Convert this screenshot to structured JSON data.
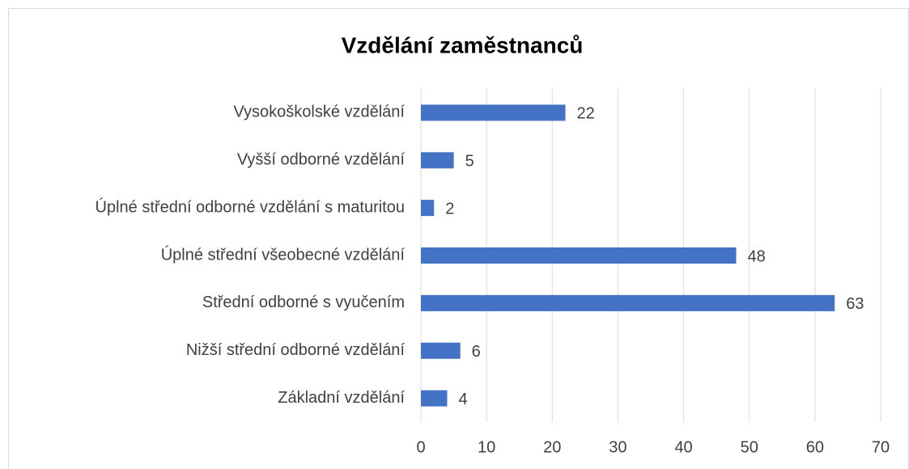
{
  "chart_data": {
    "type": "bar",
    "orientation": "horizontal",
    "title": "Vzdělání zaměstnanců",
    "categories": [
      "Vysokoškolské vzdělání",
      "Vyšší odborné vzdělání",
      "Úplné střední odborné vzdělání s maturitou",
      "Úplné střední všeobecné vzdělání",
      "Střední odborné s vyučením",
      "Nižší střední odborné vzdělání",
      "Základní vzdělání"
    ],
    "values": [
      22,
      5,
      2,
      48,
      63,
      6,
      4
    ],
    "color": "#4472c4",
    "xlim": [
      0,
      70
    ],
    "xticks": [
      0,
      10,
      20,
      30,
      40,
      50,
      60,
      70
    ],
    "grid": true
  }
}
